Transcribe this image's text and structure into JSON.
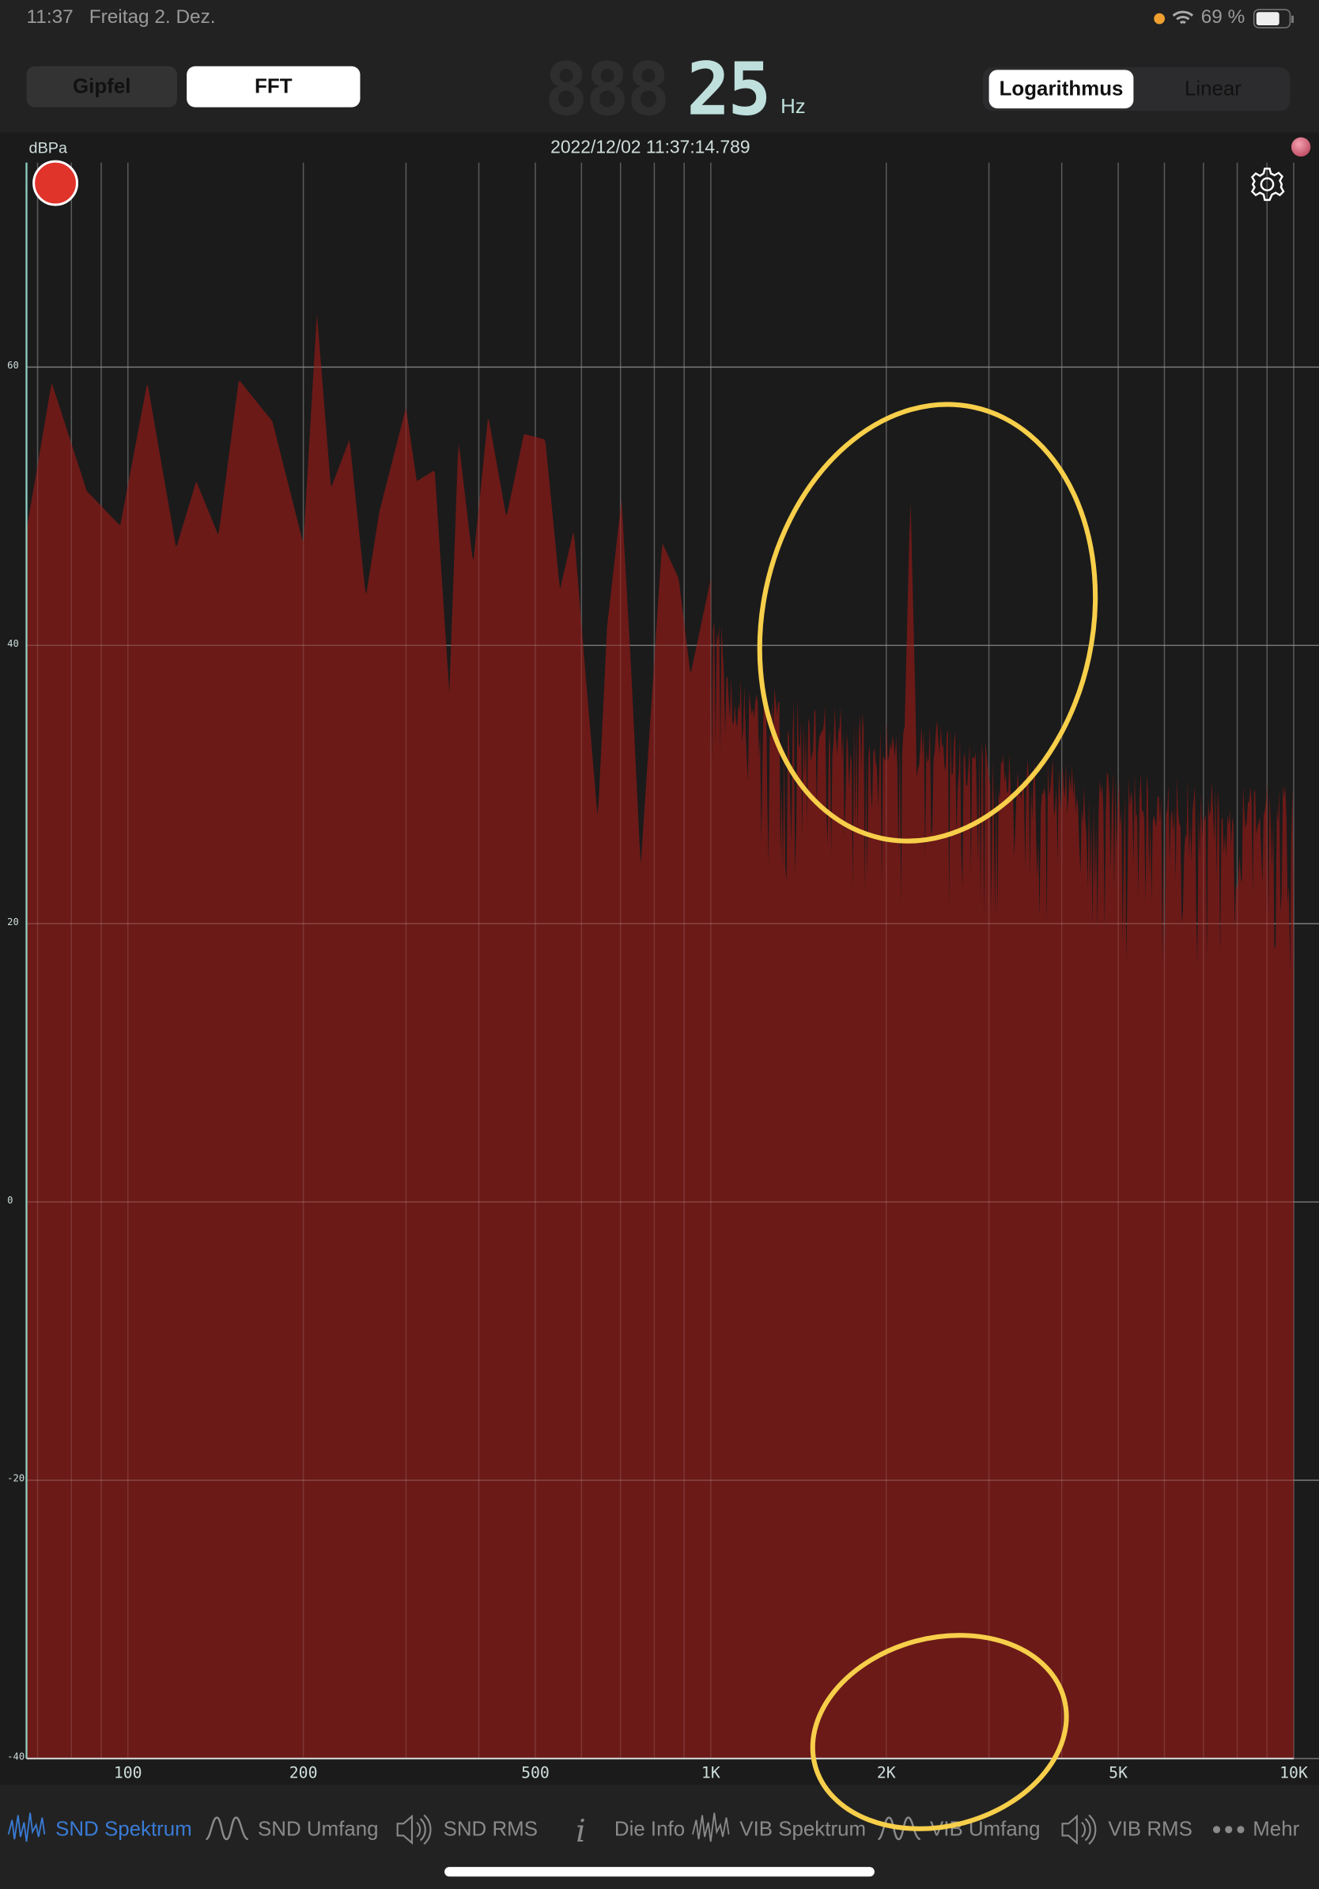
{
  "status_bar": {
    "time": "11:37",
    "date": "Freitag 2. Dez.",
    "battery": "69 %",
    "accent_dot": "#f0a030"
  },
  "mode_toggle": {
    "options": [
      "Gipfel",
      "FFT"
    ],
    "selected": "FFT"
  },
  "display": {
    "ghost_digits": "888",
    "value": "25",
    "unit": "Hz"
  },
  "scale_toggle": {
    "options": [
      "Logarithmus",
      "Linear"
    ],
    "selected": "Logarithmus"
  },
  "plot": {
    "y_unit": "dBPa",
    "timestamp": "2022/12/02 11:37:14.789",
    "record_color": "#e0332a",
    "fill_color": "#6b1a18"
  },
  "chart_data": {
    "type": "area",
    "xscale": "log",
    "xlim": [
      67,
      10000
    ],
    "ylim": [
      -40,
      74.7
    ],
    "grid": true,
    "ylabel": "dBPa",
    "y_ticks": [
      "60",
      "40",
      "20",
      "0",
      "-20",
      "-40"
    ],
    "y_tick_values": [
      60,
      40,
      20,
      0,
      -20,
      -40
    ],
    "x_ticks": [
      "100",
      "200",
      "500",
      "1K",
      "2K",
      "5K",
      "10K"
    ],
    "x_tick_values": [
      100,
      200,
      500,
      1000,
      2000,
      5000,
      10000
    ],
    "points": [
      [
        67,
        48.3
      ],
      [
        74,
        58.9
      ],
      [
        85,
        51.1
      ],
      [
        97,
        48.6
      ],
      [
        108,
        58.9
      ],
      [
        121,
        47.0
      ],
      [
        131,
        51.8
      ],
      [
        143,
        47.9
      ],
      [
        155,
        59.1
      ],
      [
        177,
        56.1
      ],
      [
        200,
        47.3
      ],
      [
        211,
        63.9
      ],
      [
        223,
        51.3
      ],
      [
        240,
        54.8
      ],
      [
        256,
        43.5
      ],
      [
        270,
        49.6
      ],
      [
        300,
        57.1
      ],
      [
        313,
        51.8
      ],
      [
        336,
        52.6
      ],
      [
        356,
        36.6
      ],
      [
        369,
        54.8
      ],
      [
        391,
        45.9
      ],
      [
        415,
        56.5
      ],
      [
        446,
        49.2
      ],
      [
        478,
        55.2
      ],
      [
        520,
        54.8
      ],
      [
        551,
        44.0
      ],
      [
        582,
        48.3
      ],
      [
        611,
        37.5
      ],
      [
        640,
        27.5
      ],
      [
        664,
        41.4
      ],
      [
        703,
        50.5
      ],
      [
        729,
        38.8
      ],
      [
        758,
        24.1
      ],
      [
        825,
        47.4
      ],
      [
        881,
        44.8
      ],
      [
        923,
        37.9
      ],
      [
        1000,
        44.8
      ],
      [
        1100,
        38
      ],
      [
        1500,
        36
      ],
      [
        2000,
        35
      ],
      [
        2150,
        34
      ],
      [
        2200,
        51
      ],
      [
        2250,
        34
      ],
      [
        2400,
        35
      ],
      [
        3000,
        33
      ],
      [
        5000,
        31
      ],
      [
        10000,
        30
      ]
    ],
    "noise_from_hz": 1000,
    "annotations": [
      {
        "shape": "ellipse",
        "color": "#f7cf4a"
      },
      {
        "shape": "ellipse",
        "color": "#f7cf4a"
      }
    ]
  },
  "tab_bar": {
    "items": [
      {
        "label": "SND Spektrum",
        "icon": "spectrum-icon",
        "active": true
      },
      {
        "label": "SND Umfang",
        "icon": "waveform-icon"
      },
      {
        "label": "SND RMS",
        "icon": "speaker-icon"
      },
      {
        "label": "Die Info",
        "icon": "info-icon"
      },
      {
        "label": "VIB Spektrum",
        "icon": "spectrum-icon"
      },
      {
        "label": "VIB Umfang",
        "icon": "waveform-icon"
      },
      {
        "label": "VIB RMS",
        "icon": "speaker-icon"
      },
      {
        "label": "Mehr",
        "icon": "more-icon"
      }
    ],
    "active_color": "#3a7bd5"
  }
}
